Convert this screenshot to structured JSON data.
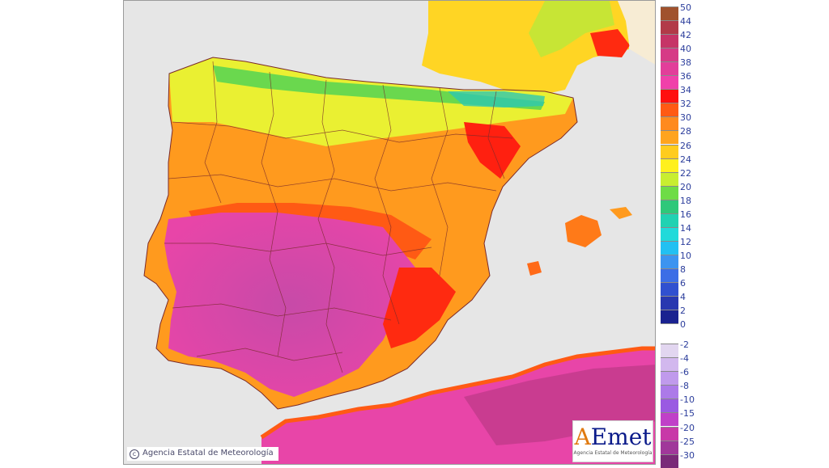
{
  "map": {
    "copyright": "Agencia Estatal de Meteorología",
    "logo": {
      "text_a": "A",
      "text_rest": "Emet",
      "subtitle": "Agencia Estatal de Meteorología"
    }
  },
  "legend": {
    "items": [
      {
        "label": "50",
        "color": "#a0522d"
      },
      {
        "label": "44",
        "color": "#b23a48"
      },
      {
        "label": "42",
        "color": "#c63467"
      },
      {
        "label": "40",
        "color": "#d63a86"
      },
      {
        "label": "38",
        "color": "#e23e9a"
      },
      {
        "label": "36",
        "color": "#f040aa"
      },
      {
        "label": "34",
        "color": "#ff1010"
      },
      {
        "label": "32",
        "color": "#ff5a14"
      },
      {
        "label": "30",
        "color": "#ff8a1e"
      },
      {
        "label": "28",
        "color": "#ffa41e"
      },
      {
        "label": "26",
        "color": "#ffcc1e"
      },
      {
        "label": "24",
        "color": "#fff01e"
      },
      {
        "label": "22",
        "color": "#c8ee30"
      },
      {
        "label": "20",
        "color": "#6edc46"
      },
      {
        "label": "18",
        "color": "#2ec87a"
      },
      {
        "label": "16",
        "color": "#20d2b2"
      },
      {
        "label": "14",
        "color": "#20dada"
      },
      {
        "label": "12",
        "color": "#22c0f2"
      },
      {
        "label": "10",
        "color": "#3c94f0"
      },
      {
        "label": "8",
        "color": "#3c6ee6"
      },
      {
        "label": "6",
        "color": "#3050d0"
      },
      {
        "label": "4",
        "color": "#2838b0"
      },
      {
        "label": "2",
        "color": "#1a2290"
      },
      {
        "label": "0",
        "color": "#ffffff"
      },
      {
        "label": "-2",
        "color": "#e2d6f0"
      },
      {
        "label": "-4",
        "color": "#d2b8ee"
      },
      {
        "label": "-6",
        "color": "#c09aec"
      },
      {
        "label": "-8",
        "color": "#ac7ae8"
      },
      {
        "label": "-10",
        "color": "#9a5ae2"
      },
      {
        "label": "-15",
        "color": "#c040c8"
      },
      {
        "label": "-20",
        "color": "#c838a8"
      },
      {
        "label": "-25",
        "color": "#a0389a"
      },
      {
        "label": "-30",
        "color": "#7a2a78"
      }
    ]
  }
}
